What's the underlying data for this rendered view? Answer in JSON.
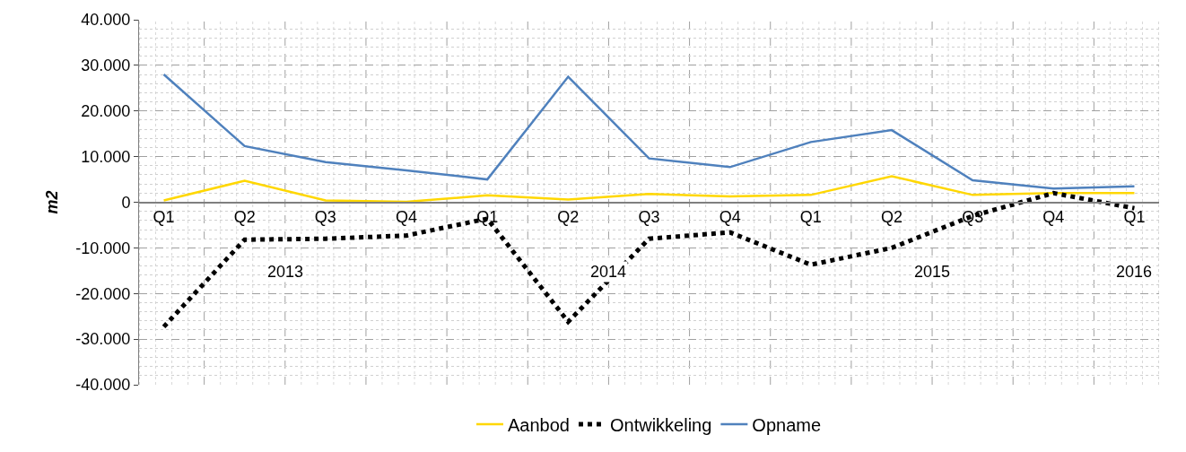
{
  "chart_data": {
    "type": "line",
    "categories": [
      "Q1",
      "Q2",
      "Q3",
      "Q4",
      "Q1",
      "Q2",
      "Q3",
      "Q4",
      "Q1",
      "Q2",
      "Q3",
      "Q4",
      "Q1"
    ],
    "series": [
      {
        "name": "Aanbod",
        "color": "#ffd700",
        "line_style": "solid",
        "values": [
          400,
          4700,
          400,
          100,
          1500,
          600,
          1800,
          1300,
          1600,
          5700,
          1600,
          2000,
          2000
        ]
      },
      {
        "name": "Ontwikkeling",
        "color": "#000000",
        "line_style": "dotted",
        "values": [
          -27300,
          -8200,
          -8000,
          -7300,
          -3600,
          -26200,
          -8000,
          -6600,
          -13700,
          -10000,
          -3000,
          2000,
          -1300
        ]
      },
      {
        "name": "Opname",
        "color": "#4f81bd",
        "line_style": "solid",
        "values": [
          28000,
          12300,
          8800,
          7000,
          5000,
          27500,
          9600,
          7700,
          13200,
          15800,
          4800,
          3000,
          3500
        ]
      }
    ],
    "ylabel": "m2",
    "ylim": [
      -40000,
      40000
    ],
    "yticks": [
      {
        "value": -40000,
        "label": "-40.000"
      },
      {
        "value": -30000,
        "label": "-30.000"
      },
      {
        "value": -20000,
        "label": "-20.000"
      },
      {
        "value": -10000,
        "label": "-10.000"
      },
      {
        "value": 0,
        "label": "0"
      },
      {
        "value": 10000,
        "label": "10.000"
      },
      {
        "value": 20000,
        "label": "20.000"
      },
      {
        "value": 30000,
        "label": "30.000"
      },
      {
        "value": 40000,
        "label": "40.000"
      }
    ],
    "annotations": [
      "2013",
      "2014",
      "2015",
      "2016"
    ],
    "grid": true,
    "legend": "bottom",
    "marker": "none"
  }
}
